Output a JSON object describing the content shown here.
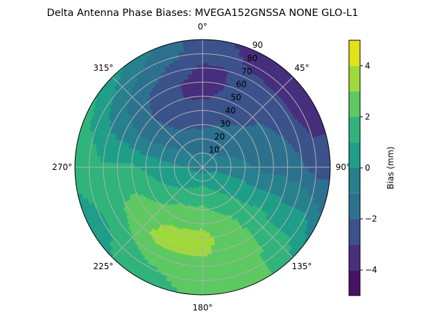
{
  "chart_data": {
    "type": "polar-contour",
    "title": "Delta Antenna Phase Biases: MVEGA152GNSSA   NONE GLO-L1",
    "angular_tick_labels": [
      "0°",
      "45°",
      "90°",
      "135°",
      "180°",
      "225°",
      "270°",
      "315°"
    ],
    "angular_ticks": [
      0,
      45,
      90,
      135,
      180,
      225,
      270,
      315
    ],
    "radial_tick_labels": [
      "10",
      "20",
      "30",
      "40",
      "50",
      "60",
      "70",
      "80",
      "90"
    ],
    "radial_ticks": [
      10,
      20,
      30,
      40,
      50,
      60,
      70,
      80,
      90
    ],
    "radial_range": [
      0,
      90
    ],
    "theta_direction": "clockwise",
    "theta_zero": "top",
    "grid": true,
    "colormap": "viridis",
    "levels": [
      -5,
      -4,
      -3,
      -2,
      -1,
      0,
      1,
      2,
      3,
      4,
      5
    ],
    "level_colors": [
      "#471365",
      "#472f7d",
      "#3b528b",
      "#2c718e",
      "#27808e",
      "#1f9e89",
      "#30b47b",
      "#5ec962",
      "#a0da39",
      "#dfe318"
    ],
    "colorbar": {
      "label": "Bias (mm)",
      "tick_labels": [
        "4",
        "2",
        "0",
        "−2",
        "−4"
      ],
      "ticks": [
        4,
        2,
        0,
        -2,
        -4
      ],
      "range": [
        -5,
        5
      ]
    },
    "azimuth": [
      0,
      30,
      60,
      90,
      120,
      150,
      180,
      210,
      240,
      270,
      300,
      330
    ],
    "zenith": [
      0,
      10,
      20,
      30,
      40,
      50,
      60,
      70,
      80,
      90
    ],
    "values": [
      [
        -0.5,
        -1.0,
        -1.5,
        -2.2,
        -2.5,
        -3.2,
        -3.5,
        -3.2,
        -2.5,
        -2.5
      ],
      [
        -0.5,
        -1.0,
        -1.5,
        -1.8,
        -2.2,
        -2.5,
        -2.6,
        -2.8,
        -3.2,
        -3.5
      ],
      [
        -0.5,
        -0.8,
        -1.2,
        -1.5,
        -1.8,
        -1.8,
        -2.2,
        -2.8,
        -3.5,
        -3.5
      ],
      [
        -0.5,
        -0.3,
        -0.5,
        -0.8,
        -1.2,
        -1.5,
        -1.5,
        -1.8,
        -2.5,
        -2.5
      ],
      [
        -0.5,
        0.2,
        0.4,
        0.5,
        0.5,
        0.8,
        0.5,
        0.5,
        0.5,
        -0.5
      ],
      [
        -0.5,
        0.5,
        1.0,
        1.5,
        2.0,
        2.2,
        2.3,
        2.3,
        2.2,
        2.2
      ],
      [
        -0.5,
        0.8,
        1.5,
        2.2,
        2.8,
        3.3,
        3.2,
        2.5,
        2.4,
        2.3
      ],
      [
        -0.5,
        0.6,
        1.2,
        2.0,
        2.6,
        3.2,
        3.3,
        2.5,
        1.8,
        1.5
      ],
      [
        -0.5,
        0.3,
        0.7,
        1.2,
        1.8,
        2.3,
        2.2,
        1.5,
        0.8,
        0.5
      ],
      [
        -0.5,
        0.0,
        0.2,
        0.5,
        0.8,
        1.2,
        1.3,
        1.2,
        1.5,
        1.3
      ],
      [
        -0.5,
        -0.5,
        -0.8,
        -1.0,
        -1.2,
        -1.2,
        -0.8,
        -0.5,
        0.5,
        1.2
      ],
      [
        -0.5,
        -1.0,
        -1.5,
        -2.0,
        -2.5,
        -2.8,
        -2.5,
        -1.8,
        -1.2,
        -0.5
      ]
    ]
  }
}
